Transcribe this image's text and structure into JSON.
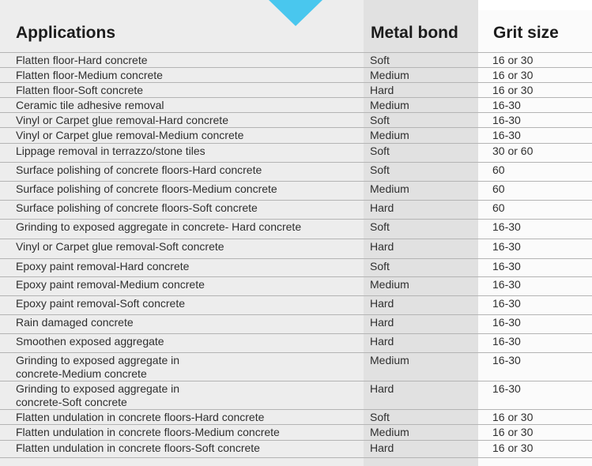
{
  "headers": {
    "applications": "Applications",
    "metal_bond": "Metal bond",
    "grit_size": "Grit size"
  },
  "rows": [
    {
      "app": "Flatten floor-Hard concrete",
      "bond": "Soft",
      "grit": "16 or 30"
    },
    {
      "app": "Flatten floor-Medium concrete",
      "bond": "Medium",
      "grit": "16 or 30"
    },
    {
      "app": "Flatten floor-Soft concrete",
      "bond": "Hard",
      "grit": "16 or 30"
    },
    {
      "app": "Ceramic tile adhesive removal",
      "bond": "Medium",
      "grit": "16-30"
    },
    {
      "app": "Vinyl or Carpet glue removal-Hard concrete",
      "bond": "Soft",
      "grit": "16-30"
    },
    {
      "app": "Vinyl or Carpet glue removal-Medium concrete",
      "bond": "Medium",
      "grit": "16-30"
    },
    {
      "app": "Lippage removal in terrazzo/stone tiles",
      "bond": "Soft",
      "grit": "30 or 60"
    },
    {
      "app": "Surface polishing of concrete floors-Hard concrete",
      "bond": "Soft",
      "grit": "60"
    },
    {
      "app": "Surface polishing of concrete floors-Medium concrete",
      "bond": "Medium",
      "grit": "60"
    },
    {
      "app": "Surface polishing of concrete floors-Soft concrete",
      "bond": "Hard",
      "grit": "60"
    },
    {
      "app": "Grinding to exposed aggregate in concrete- Hard concrete",
      "bond": "Soft",
      "grit": "16-30"
    },
    {
      "app": "Vinyl or Carpet glue removal-Soft concrete",
      "bond": "Hard",
      "grit": "16-30"
    },
    {
      "app": "Epoxy paint removal-Hard concrete",
      "bond": "Soft",
      "grit": "16-30"
    },
    {
      "app": "Epoxy paint removal-Medium concrete",
      "bond": "Medium",
      "grit": "16-30"
    },
    {
      "app": "Epoxy paint removal-Soft concrete",
      "bond": "Hard",
      "grit": "16-30"
    },
    {
      "app": "Rain damaged concrete",
      "bond": "Hard",
      "grit": "16-30"
    },
    {
      "app": "Smoothen exposed aggregate",
      "bond": "Hard",
      "grit": "16-30"
    },
    {
      "app": "Grinding to exposed aggregate in\nconcrete-Medium concrete",
      "bond": "Medium",
      "grit": "16-30"
    },
    {
      "app": "Grinding to exposed aggregate in\nconcrete-Soft concrete",
      "bond": "Hard",
      "grit": "16-30"
    },
    {
      "app": "Flatten undulation in concrete floors-Hard concrete",
      "bond": "Soft",
      "grit": "16 or 30"
    },
    {
      "app": "Flatten undulation in concrete floors-Medium concrete",
      "bond": "Medium",
      "grit": "16 or 30"
    },
    {
      "app": "Flatten undulation in concrete floors-Soft concrete",
      "bond": "Hard",
      "grit": "16 or 30"
    }
  ],
  "colors": {
    "accent": "#49c7ee",
    "grid": "#b4b4b4"
  }
}
